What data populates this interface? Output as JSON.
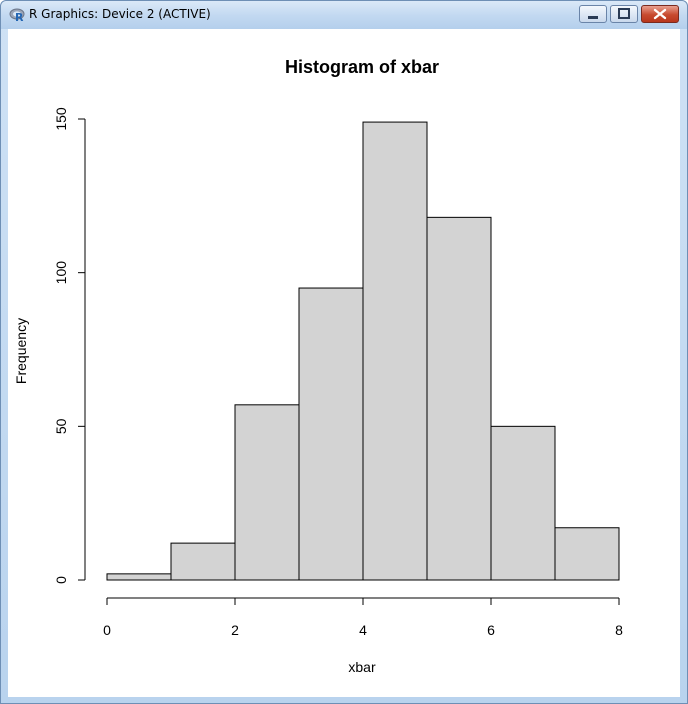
{
  "window": {
    "title": "R Graphics: Device 2 (ACTIVE)",
    "icon": "r-logo-icon",
    "controls": [
      "minimize-icon",
      "maximize-icon",
      "close-icon"
    ]
  },
  "chart_data": {
    "type": "bar",
    "title": "Histogram of xbar",
    "xlabel": "xbar",
    "ylabel": "Frequency",
    "bins": [
      [
        0,
        1
      ],
      [
        1,
        2
      ],
      [
        2,
        3
      ],
      [
        3,
        4
      ],
      [
        4,
        5
      ],
      [
        5,
        6
      ],
      [
        6,
        7
      ],
      [
        7,
        8
      ]
    ],
    "values": [
      2,
      12,
      57,
      95,
      149,
      118,
      50,
      17
    ],
    "xlim": [
      0,
      8
    ],
    "ylim": [
      0,
      150
    ],
    "xticks": [
      0,
      2,
      4,
      6,
      8
    ],
    "yticks": [
      0,
      50,
      100,
      150
    ],
    "bar_color": "#d3d3d3",
    "grid": false
  }
}
